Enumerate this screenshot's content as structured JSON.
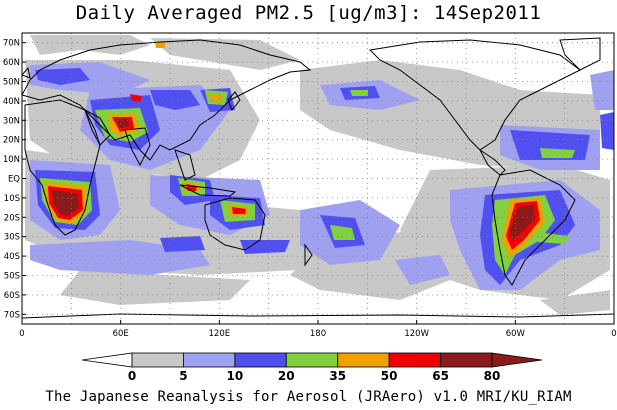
{
  "title": "Daily Averaged PM2.5 [ug/m3]: 14Sep2011",
  "footer": "The Japanese Reanalysis for Aerosol (JRAero) v1.0 MRI/KU_RIAM",
  "map": {
    "projection": "equirectangular",
    "lon_range": [
      0,
      360
    ],
    "lat_range": [
      -75,
      75
    ],
    "gridlines": "dotted",
    "lat_ticks": [
      "70N",
      "60N",
      "50N",
      "40N",
      "30N",
      "20N",
      "10N",
      "EQ",
      "10S",
      "20S",
      "30S",
      "40S",
      "50S",
      "60S",
      "70S"
    ],
    "lon_ticks": [
      "0",
      "60E",
      "120E",
      "180",
      "120W",
      "60W",
      "0"
    ]
  },
  "colorbar": {
    "ticks": [
      "0",
      "5",
      "10",
      "20",
      "35",
      "50",
      "65",
      "80"
    ],
    "colors": [
      "#ffffff",
      "#c8c8c8",
      "#a0a0f0",
      "#5050f0",
      "#80d040",
      "#f0a000",
      "#f00000",
      "#8b1a1a"
    ]
  }
}
